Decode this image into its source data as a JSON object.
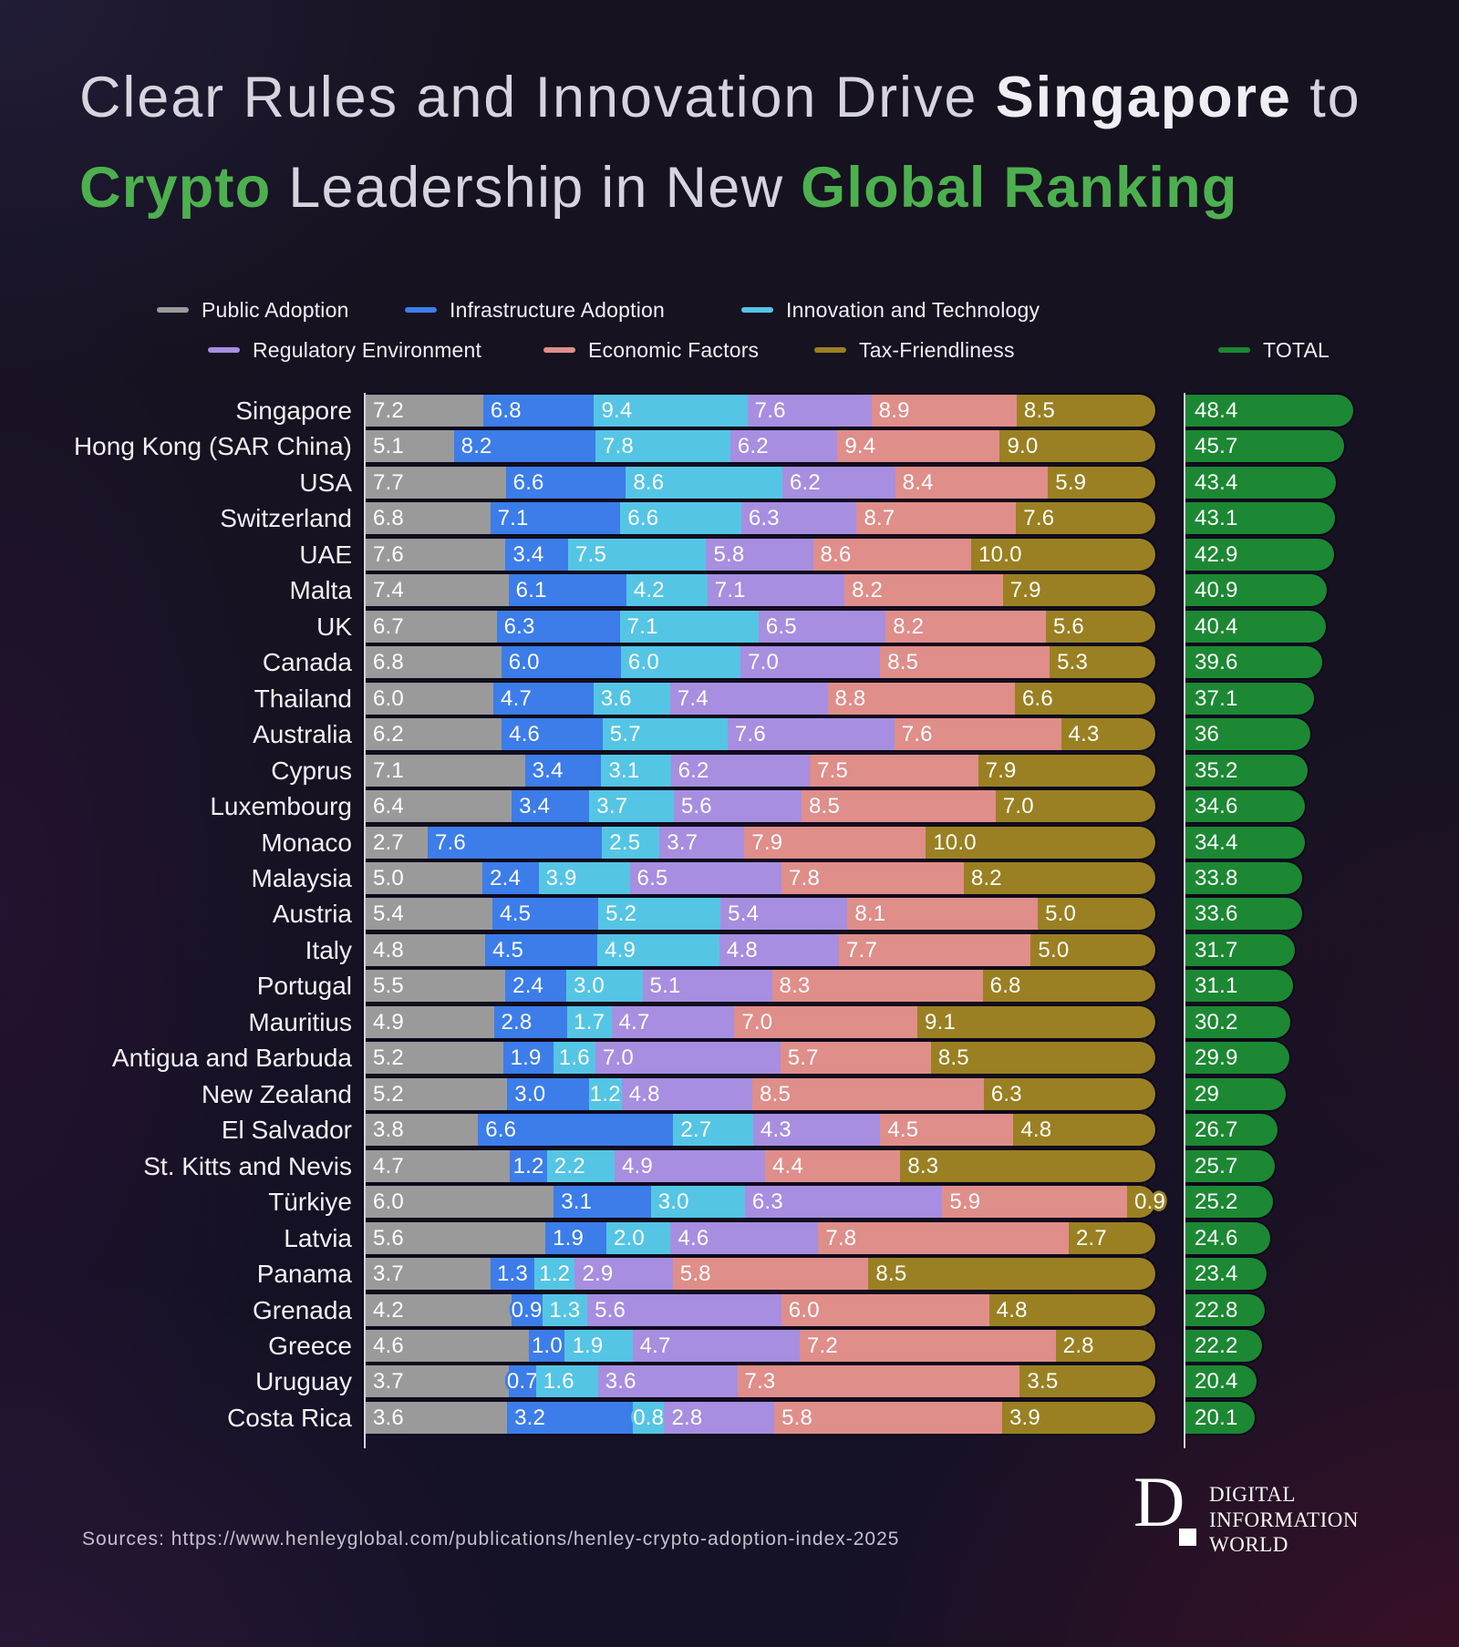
{
  "title": {
    "line1_prefix": "Clear Rules and Innovation Drive ",
    "line1_bold": "Singapore",
    "line1_suffix": " to",
    "line2_green1": "Crypto",
    "line2_middle": " Leadership in New ",
    "line2_green2": "Global Ranking",
    "accent_green": "#4db04f"
  },
  "legend": {
    "row1": [
      "Public Adoption",
      "Infrastructure Adoption",
      "Innovation and Technology"
    ],
    "row2": [
      "Regulatory Environment",
      "Economic Factors",
      "Tax-Friendliness"
    ],
    "total_label": "TOTAL"
  },
  "chart_data": {
    "type": "bar",
    "orientation": "horizontal",
    "stacked": true,
    "normalized_width": true,
    "series_names": [
      "Public Adoption",
      "Infrastructure Adoption",
      "Innovation and Technology",
      "Regulatory Environment",
      "Economic Factors",
      "Tax-Friendliness"
    ],
    "series_colors": [
      "#9a9a9a",
      "#3c7de9",
      "#55c5e5",
      "#a78ee0",
      "#df8e8a",
      "#9a8022"
    ],
    "total_color": "#1c8833",
    "categories": [
      "Singapore",
      "Hong Kong (SAR China)",
      "USA",
      "Switzerland",
      "UAE",
      "Malta",
      "UK",
      "Canada",
      "Thailand",
      "Australia",
      "Cyprus",
      "Luxembourg",
      "Monaco",
      "Malaysia",
      "Austria",
      "Italy",
      "Portugal",
      "Mauritius",
      "Antigua and Barbuda",
      "New Zealand",
      "El Salvador",
      "St. Kitts and Nevis",
      "Türkiye",
      "Latvia",
      "Panama",
      "Grenada",
      "Greece",
      "Uruguay",
      "Costa Rica"
    ],
    "series": [
      {
        "name": "Public Adoption",
        "values": [
          7.2,
          5.1,
          7.7,
          6.8,
          7.6,
          7.4,
          6.7,
          6.8,
          6.0,
          6.2,
          7.1,
          6.4,
          2.7,
          5.0,
          5.4,
          4.8,
          5.5,
          4.9,
          5.2,
          5.2,
          3.8,
          4.7,
          6.0,
          5.6,
          3.7,
          4.2,
          4.6,
          3.7,
          3.6
        ]
      },
      {
        "name": "Infrastructure Adoption",
        "values": [
          6.8,
          8.2,
          6.6,
          7.1,
          3.4,
          6.1,
          6.3,
          6.0,
          4.7,
          4.6,
          3.4,
          3.4,
          7.6,
          2.4,
          4.5,
          4.5,
          2.4,
          2.8,
          1.9,
          3.0,
          6.6,
          1.2,
          3.1,
          1.9,
          1.3,
          0.9,
          1.0,
          0.7,
          3.2
        ]
      },
      {
        "name": "Innovation and Technology",
        "values": [
          9.4,
          7.8,
          8.6,
          6.6,
          7.5,
          4.2,
          7.1,
          6.0,
          3.6,
          5.7,
          3.1,
          3.7,
          2.5,
          3.9,
          5.2,
          4.9,
          3.0,
          1.7,
          1.6,
          1.2,
          2.7,
          2.2,
          3.0,
          2.0,
          1.2,
          1.3,
          1.9,
          1.6,
          0.8
        ]
      },
      {
        "name": "Regulatory Environment",
        "values": [
          7.6,
          6.2,
          6.2,
          6.3,
          5.8,
          7.1,
          6.5,
          7.0,
          7.4,
          7.6,
          6.2,
          5.6,
          3.7,
          6.5,
          5.4,
          4.8,
          5.1,
          4.7,
          7.0,
          4.8,
          4.3,
          4.9,
          6.3,
          4.6,
          2.9,
          5.6,
          4.7,
          3.6,
          2.8
        ]
      },
      {
        "name": "Economic Factors",
        "values": [
          8.9,
          9.4,
          8.4,
          8.7,
          8.6,
          8.2,
          8.2,
          8.5,
          8.8,
          7.6,
          7.5,
          8.5,
          7.9,
          7.8,
          8.1,
          7.7,
          8.3,
          7.0,
          5.7,
          8.5,
          4.5,
          4.4,
          5.9,
          7.8,
          5.8,
          6.0,
          7.2,
          7.3,
          5.8
        ]
      },
      {
        "name": "Tax-Friendliness",
        "values": [
          8.5,
          9.0,
          5.9,
          7.6,
          10.0,
          7.9,
          5.6,
          5.3,
          6.6,
          4.3,
          7.9,
          7.0,
          10.0,
          8.2,
          5.0,
          5.0,
          6.8,
          9.1,
          8.5,
          6.3,
          4.8,
          8.3,
          0.9,
          2.7,
          8.5,
          4.8,
          2.8,
          3.5,
          3.9
        ]
      }
    ],
    "totals": [
      "48.4",
      "45.7",
      "43.4",
      "43.1",
      "42.9",
      "40.9",
      "40.4",
      "39.6",
      "37.1",
      "36",
      "35.2",
      "34.6",
      "34.4",
      "33.8",
      "33.6",
      "31.7",
      "31.1",
      "30.2",
      "29.9",
      "29",
      "26.7",
      "25.7",
      "25.2",
      "24.6",
      "23.4",
      "22.8",
      "22.2",
      "20.4",
      "20.1"
    ]
  },
  "footer": {
    "sources": "Sources: https://www.henleyglobal.com/publications/henley-crypto-adoption-index-2025",
    "logo_d": "D",
    "logo_lines": [
      "DIGITAL",
      "INFORMATION",
      "WORLD"
    ]
  }
}
